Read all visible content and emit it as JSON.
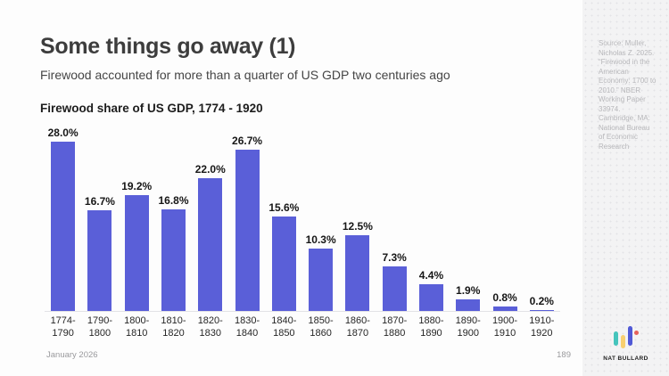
{
  "slide": {
    "title": "Some things go away (1)",
    "subtitle": "Firewood accounted for more than a quarter of US GDP two centuries ago"
  },
  "chart_data": {
    "type": "bar",
    "title": "Firewood share of US GDP, 1774 - 1920",
    "categories": [
      "1774-1790",
      "1790-1800",
      "1800-1810",
      "1810-1820",
      "1820-1830",
      "1830-1840",
      "1840-1850",
      "1850-1860",
      "1860-1870",
      "1870-1880",
      "1880-1890",
      "1890-1900",
      "1900-1910",
      "1910-1920"
    ],
    "values": [
      28.0,
      16.7,
      19.2,
      16.8,
      22.0,
      26.7,
      15.6,
      10.3,
      12.5,
      7.3,
      4.4,
      1.9,
      0.8,
      0.2
    ],
    "value_labels": [
      "28.0%",
      "16.7%",
      "19.2%",
      "16.8%",
      "22.0%",
      "26.7%",
      "15.6%",
      "10.3%",
      "12.5%",
      "7.3%",
      "4.4%",
      "1.9%",
      "0.8%",
      "0.2%"
    ],
    "xlabel": "",
    "ylabel": "",
    "ylim": [
      0,
      28
    ],
    "grid": false,
    "legend": "none",
    "bar_color": "#5a5fd8"
  },
  "sidebar": {
    "source_text": "Source: Muller, Nicholas Z. 2025. “Firewood in the American Economy: 1700 to 2010.” NBER Working Paper 33974. Cambridge, MA: National Bureau of Economic Research"
  },
  "footer": {
    "date": "January 2026",
    "page_number": "189"
  },
  "brand": {
    "name": "NAT BULLARD",
    "logo_colors": {
      "teal": "#45c4bc",
      "yellow": "#f8cf70",
      "blue": "#5059d6",
      "red": "#e5625c"
    }
  }
}
